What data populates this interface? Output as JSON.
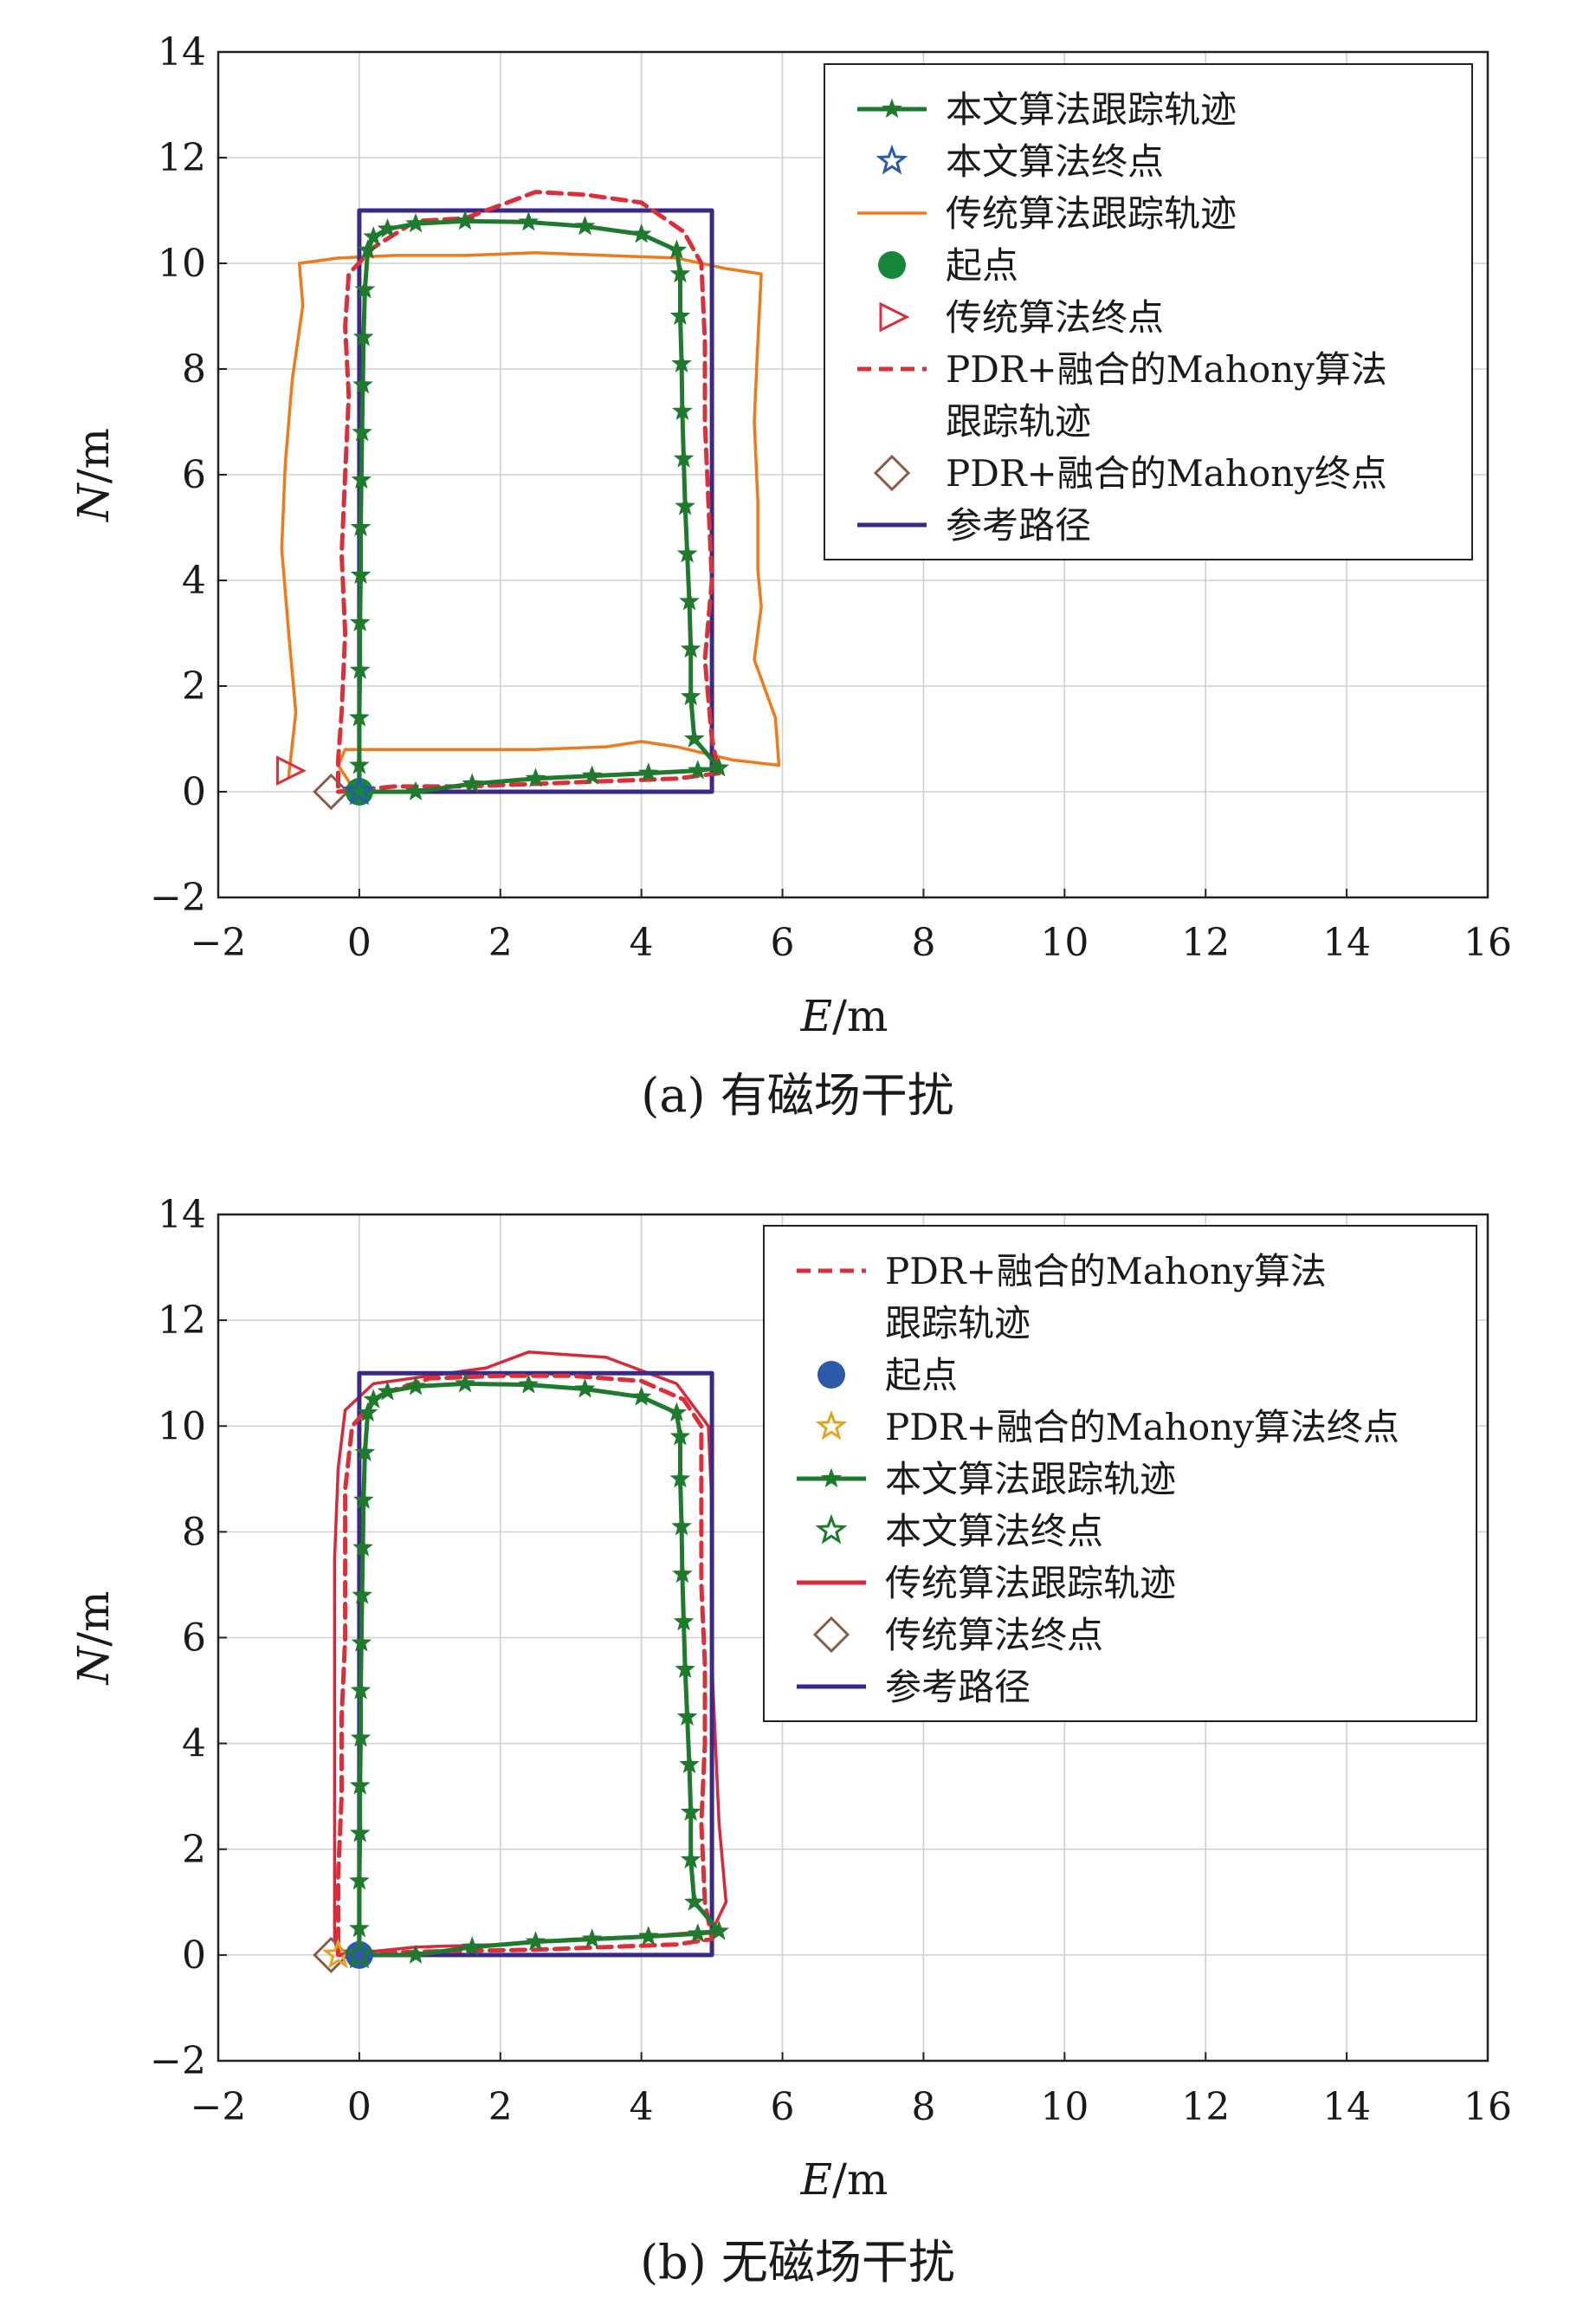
{
  "chart_data": [
    {
      "type": "line",
      "caption": "(a) 有磁场干扰",
      "xlabel_var": "E",
      "xlabel_unit": "/m",
      "ylabel_var": "N",
      "ylabel_unit": "/m",
      "xlim": [
        -2,
        16
      ],
      "ylim": [
        -2,
        14
      ],
      "xticks": [
        "−2",
        "0",
        "2",
        "4",
        "6",
        "8",
        "10",
        "12",
        "14",
        "16"
      ],
      "yticks": [
        "−2",
        "0",
        "2",
        "4",
        "6",
        "8",
        "10",
        "12",
        "14"
      ],
      "grid": true,
      "legend_position": "top-right",
      "legend": [
        {
          "key": "ours",
          "label": "本文算法跟踪轨迹",
          "marker": "star-line"
        },
        {
          "key": "ours_end",
          "label": "本文算法终点",
          "marker": "star-open-blue"
        },
        {
          "key": "trad",
          "label": "传统算法跟踪轨迹",
          "marker": "line"
        },
        {
          "key": "start",
          "label": "起点",
          "marker": "circle"
        },
        {
          "key": "trad_end",
          "label": "传统算法终点",
          "marker": "triangle-right"
        },
        {
          "key": "pdr",
          "label": "PDR+融合的Mahony算法",
          "label2": "跟踪轨迹",
          "marker": "dashed"
        },
        {
          "key": "pdr_end",
          "label": "PDR+融合的Mahony终点",
          "marker": "diamond"
        },
        {
          "key": "ref",
          "label": "参考路径",
          "marker": "line"
        }
      ],
      "colors": {
        "ours": "#1f7a2e",
        "trad": "#f07a1a",
        "pdr": "#d9303a",
        "ref": "#3a2a86",
        "start": "#15863a",
        "ours_end": "#2a5aa8",
        "trad_end": "#d9303a",
        "pdr_end": "#8a5a4a"
      },
      "series": {
        "ref": [
          [
            0,
            0
          ],
          [
            5,
            0
          ],
          [
            5,
            11
          ],
          [
            0,
            11
          ],
          [
            0,
            0
          ]
        ],
        "ours": [
          [
            0,
            0
          ],
          [
            0.8,
            0
          ],
          [
            1.6,
            0.15
          ],
          [
            2.5,
            0.25
          ],
          [
            3.3,
            0.3
          ],
          [
            4.1,
            0.35
          ],
          [
            4.8,
            0.4
          ],
          [
            5.1,
            0.45
          ],
          [
            4.75,
            1.0
          ],
          [
            4.7,
            1.8
          ],
          [
            4.7,
            2.7
          ],
          [
            4.68,
            3.6
          ],
          [
            4.65,
            4.5
          ],
          [
            4.62,
            5.4
          ],
          [
            4.6,
            6.3
          ],
          [
            4.58,
            7.2
          ],
          [
            4.57,
            8.1
          ],
          [
            4.55,
            9.0
          ],
          [
            4.55,
            9.8
          ],
          [
            4.5,
            10.25
          ],
          [
            4.0,
            10.55
          ],
          [
            3.2,
            10.7
          ],
          [
            2.4,
            10.78
          ],
          [
            1.5,
            10.8
          ],
          [
            0.8,
            10.75
          ],
          [
            0.4,
            10.65
          ],
          [
            0.2,
            10.5
          ],
          [
            0.12,
            10.25
          ],
          [
            0.08,
            9.5
          ],
          [
            0.06,
            8.6
          ],
          [
            0.05,
            7.7
          ],
          [
            0.04,
            6.8
          ],
          [
            0.03,
            5.9
          ],
          [
            0.02,
            5.0
          ],
          [
            0.02,
            4.1
          ],
          [
            0.01,
            3.2
          ],
          [
            0.01,
            2.3
          ],
          [
            0,
            1.4
          ],
          [
            0,
            0.5
          ],
          [
            0,
            0
          ]
        ],
        "ours_stars_every": 1,
        "trad": [
          [
            -1,
            0.3
          ],
          [
            -0.9,
            1.5
          ],
          [
            -1.0,
            3.0
          ],
          [
            -1.1,
            4.6
          ],
          [
            -1.05,
            6.2
          ],
          [
            -0.95,
            7.8
          ],
          [
            -0.8,
            9.2
          ],
          [
            -0.85,
            10.0
          ],
          [
            -0.3,
            10.1
          ],
          [
            0.5,
            10.15
          ],
          [
            1.5,
            10.15
          ],
          [
            2.5,
            10.2
          ],
          [
            3.5,
            10.15
          ],
          [
            4.5,
            10.1
          ],
          [
            5.2,
            9.9
          ],
          [
            5.7,
            9.8
          ],
          [
            5.65,
            8.5
          ],
          [
            5.6,
            7.0
          ],
          [
            5.65,
            5.5
          ],
          [
            5.65,
            4.2
          ],
          [
            5.7,
            3.5
          ],
          [
            5.6,
            2.5
          ],
          [
            5.9,
            1.4
          ],
          [
            5.95,
            0.5
          ],
          [
            5.3,
            0.6
          ],
          [
            4.5,
            0.85
          ],
          [
            4.0,
            0.95
          ],
          [
            3.5,
            0.85
          ],
          [
            2.5,
            0.8
          ],
          [
            1.5,
            0.8
          ],
          [
            0.5,
            0.8
          ],
          [
            -0.2,
            0.8
          ],
          [
            -0.3,
            0.5
          ],
          [
            -0.1,
            0.1
          ]
        ],
        "pdr": [
          [
            -0.3,
            0
          ],
          [
            0.5,
            0.1
          ],
          [
            1.5,
            0.1
          ],
          [
            2.5,
            0.15
          ],
          [
            3.5,
            0.2
          ],
          [
            4.5,
            0.25
          ],
          [
            5.1,
            0.35
          ],
          [
            5.0,
            1.0
          ],
          [
            4.9,
            2.5
          ],
          [
            5.0,
            4.0
          ],
          [
            4.95,
            5.5
          ],
          [
            4.9,
            7.0
          ],
          [
            4.9,
            8.5
          ],
          [
            4.85,
            10.0
          ],
          [
            4.6,
            10.6
          ],
          [
            4.0,
            11.15
          ],
          [
            3.2,
            11.3
          ],
          [
            2.5,
            11.35
          ],
          [
            2.0,
            11.1
          ],
          [
            1.5,
            10.85
          ],
          [
            0.8,
            10.8
          ],
          [
            0.2,
            10.3
          ],
          [
            -0.15,
            9.8
          ],
          [
            -0.2,
            8.8
          ],
          [
            -0.15,
            7.5
          ],
          [
            -0.2,
            6.0
          ],
          [
            -0.25,
            4.5
          ],
          [
            -0.2,
            3.0
          ],
          [
            -0.25,
            1.5
          ],
          [
            -0.3,
            0.6
          ],
          [
            -0.3,
            0
          ]
        ],
        "ours_end": [
          0,
          0
        ],
        "start": [
          0,
          0
        ],
        "trad_end": [
          -1,
          0.4
        ],
        "pdr_end": [
          -0.4,
          0
        ]
      }
    },
    {
      "type": "line",
      "caption": "(b) 无磁场干扰",
      "xlabel_var": "E",
      "xlabel_unit": "/m",
      "ylabel_var": "N",
      "ylabel_unit": "/m",
      "xlim": [
        -2,
        16
      ],
      "ylim": [
        -2,
        14
      ],
      "xticks": [
        "−2",
        "0",
        "2",
        "4",
        "6",
        "8",
        "10",
        "12",
        "14",
        "16"
      ],
      "yticks": [
        "−2",
        "0",
        "2",
        "4",
        "6",
        "8",
        "10",
        "12",
        "14"
      ],
      "grid": true,
      "legend_position": "top-right",
      "legend": [
        {
          "key": "pdr",
          "label": "PDR+融合的Mahony算法",
          "label2": "跟踪轨迹",
          "marker": "dashed"
        },
        {
          "key": "start",
          "label": "起点",
          "marker": "circle"
        },
        {
          "key": "pdr_end",
          "label": "PDR+融合的Mahony算法终点",
          "marker": "star-open-orange"
        },
        {
          "key": "ours",
          "label": "本文算法跟踪轨迹",
          "marker": "star-line"
        },
        {
          "key": "ours_end",
          "label": "本文算法终点",
          "marker": "star-open-green"
        },
        {
          "key": "trad",
          "label": "传统算法跟踪轨迹",
          "marker": "line"
        },
        {
          "key": "trad_end",
          "label": "传统算法终点",
          "marker": "diamond"
        },
        {
          "key": "ref",
          "label": "参考路径",
          "marker": "line"
        }
      ],
      "colors": {
        "ours": "#1f7a2e",
        "trad": "#d42a3a",
        "pdr": "#d9303a",
        "ref": "#3a2a86",
        "start": "#2a5aa8",
        "ours_end": "#1f7a2e",
        "trad_end": "#8a5a4a",
        "pdr_end": "#e8a020"
      },
      "series": {
        "ref": [
          [
            0,
            0
          ],
          [
            5,
            0
          ],
          [
            5,
            11
          ],
          [
            0,
            11
          ],
          [
            0,
            0
          ]
        ],
        "ours": [
          [
            0,
            0
          ],
          [
            0.8,
            0
          ],
          [
            1.6,
            0.15
          ],
          [
            2.5,
            0.25
          ],
          [
            3.3,
            0.3
          ],
          [
            4.1,
            0.35
          ],
          [
            4.8,
            0.4
          ],
          [
            5.1,
            0.45
          ],
          [
            4.75,
            1.0
          ],
          [
            4.7,
            1.8
          ],
          [
            4.7,
            2.7
          ],
          [
            4.68,
            3.6
          ],
          [
            4.65,
            4.5
          ],
          [
            4.62,
            5.4
          ],
          [
            4.6,
            6.3
          ],
          [
            4.58,
            7.2
          ],
          [
            4.57,
            8.1
          ],
          [
            4.55,
            9.0
          ],
          [
            4.55,
            9.8
          ],
          [
            4.5,
            10.25
          ],
          [
            4.0,
            10.55
          ],
          [
            3.2,
            10.7
          ],
          [
            2.4,
            10.78
          ],
          [
            1.5,
            10.8
          ],
          [
            0.8,
            10.75
          ],
          [
            0.4,
            10.65
          ],
          [
            0.2,
            10.5
          ],
          [
            0.12,
            10.25
          ],
          [
            0.08,
            9.5
          ],
          [
            0.06,
            8.6
          ],
          [
            0.05,
            7.7
          ],
          [
            0.04,
            6.8
          ],
          [
            0.03,
            5.9
          ],
          [
            0.02,
            5.0
          ],
          [
            0.02,
            4.1
          ],
          [
            0.01,
            3.2
          ],
          [
            0.01,
            2.3
          ],
          [
            0,
            1.4
          ],
          [
            0,
            0.5
          ],
          [
            0,
            0
          ]
        ],
        "trad": [
          [
            -0.3,
            0
          ],
          [
            0.8,
            0.15
          ],
          [
            2.0,
            0.2
          ],
          [
            3.0,
            0.3
          ],
          [
            4.0,
            0.35
          ],
          [
            5.0,
            0.45
          ],
          [
            5.2,
            1.0
          ],
          [
            5.1,
            2.5
          ],
          [
            5.05,
            4.0
          ],
          [
            5.0,
            5.5
          ],
          [
            5.0,
            7.0
          ],
          [
            5.0,
            8.5
          ],
          [
            4.95,
            10.0
          ],
          [
            4.5,
            10.8
          ],
          [
            3.5,
            11.3
          ],
          [
            2.4,
            11.4
          ],
          [
            1.8,
            11.1
          ],
          [
            1.0,
            10.95
          ],
          [
            0.2,
            10.8
          ],
          [
            -0.2,
            10.3
          ],
          [
            -0.3,
            9.2
          ],
          [
            -0.35,
            7.5
          ],
          [
            -0.35,
            6.0
          ],
          [
            -0.35,
            4.5
          ],
          [
            -0.35,
            3.0
          ],
          [
            -0.35,
            1.5
          ],
          [
            -0.35,
            0.3
          ],
          [
            -0.3,
            0
          ]
        ],
        "pdr": [
          [
            -0.3,
            0
          ],
          [
            0.5,
            0.05
          ],
          [
            1.5,
            0.08
          ],
          [
            2.5,
            0.1
          ],
          [
            3.5,
            0.15
          ],
          [
            4.5,
            0.2
          ],
          [
            5.0,
            0.3
          ],
          [
            4.9,
            1.0
          ],
          [
            4.85,
            2.5
          ],
          [
            4.9,
            4.0
          ],
          [
            4.9,
            5.5
          ],
          [
            4.85,
            7.0
          ],
          [
            4.85,
            8.5
          ],
          [
            4.85,
            10.0
          ],
          [
            4.6,
            10.5
          ],
          [
            4.0,
            10.85
          ],
          [
            3.0,
            10.95
          ],
          [
            2.0,
            10.95
          ],
          [
            1.0,
            10.9
          ],
          [
            0.3,
            10.6
          ],
          [
            -0.1,
            10.0
          ],
          [
            -0.2,
            8.8
          ],
          [
            -0.2,
            7.5
          ],
          [
            -0.2,
            6.0
          ],
          [
            -0.25,
            4.5
          ],
          [
            -0.25,
            3.0
          ],
          [
            -0.3,
            1.5
          ],
          [
            -0.3,
            0.5
          ],
          [
            -0.3,
            0
          ]
        ],
        "ours_end": [
          0,
          0
        ],
        "start": [
          0,
          0
        ],
        "trad_end": [
          -0.4,
          0
        ],
        "pdr_end": [
          -0.3,
          0
        ]
      }
    }
  ]
}
